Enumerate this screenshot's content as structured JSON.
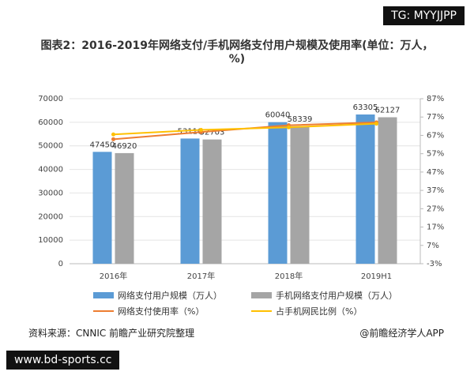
{
  "chart_data": {
    "type": "bar",
    "title": "图表2：2016-2019年网络支付/手机网络支付用户规模及使用率(单位：万人，%)",
    "categories": [
      "2016年",
      "2017年",
      "2018年",
      "2019H1"
    ],
    "series": [
      {
        "name": "网络支付用户规模（万人）",
        "type": "bar",
        "color": "#5b9bd5",
        "values": [
          47450,
          53110,
          60040,
          63305
        ]
      },
      {
        "name": "手机网络支付用户规模（万人）",
        "type": "bar",
        "color": "#a5a5a5",
        "values": [
          46920,
          52703,
          58339,
          62127
        ]
      },
      {
        "name": "网络支付使用率（%）",
        "type": "line",
        "axis": "y2",
        "color": "#ed7d31",
        "values": [
          64.9,
          68.8,
          72.5,
          74.1
        ]
      },
      {
        "name": "占手机网民比例（%）",
        "type": "line",
        "axis": "y2",
        "color": "#ffc000",
        "values": [
          67.5,
          70.0,
          71.4,
          73.4
        ]
      }
    ],
    "ylim": [
      0,
      70000
    ],
    "yticks": [
      0,
      10000,
      20000,
      30000,
      40000,
      50000,
      60000,
      70000
    ],
    "y2lim": [
      -3,
      87
    ],
    "y2ticks": [
      {
        "value": -3,
        "label": "-3%"
      },
      {
        "value": 7,
        "label": "7%"
      },
      {
        "value": 17,
        "label": "17%"
      },
      {
        "value": 27,
        "label": "27%"
      },
      {
        "value": 37,
        "label": "37%"
      },
      {
        "value": 47,
        "label": "47%"
      },
      {
        "value": 57,
        "label": "57%"
      },
      {
        "value": 67,
        "label": "67%"
      },
      {
        "value": 77,
        "label": "77%"
      },
      {
        "value": 87,
        "label": "87%"
      }
    ],
    "source": "资料来源：CNNIC 前瞻产业研究院整理",
    "credit": "@前瞻经济学人APP"
  },
  "watermarks": [
    "TG: MYYJJPP",
    "www.bd-sports.cc"
  ]
}
